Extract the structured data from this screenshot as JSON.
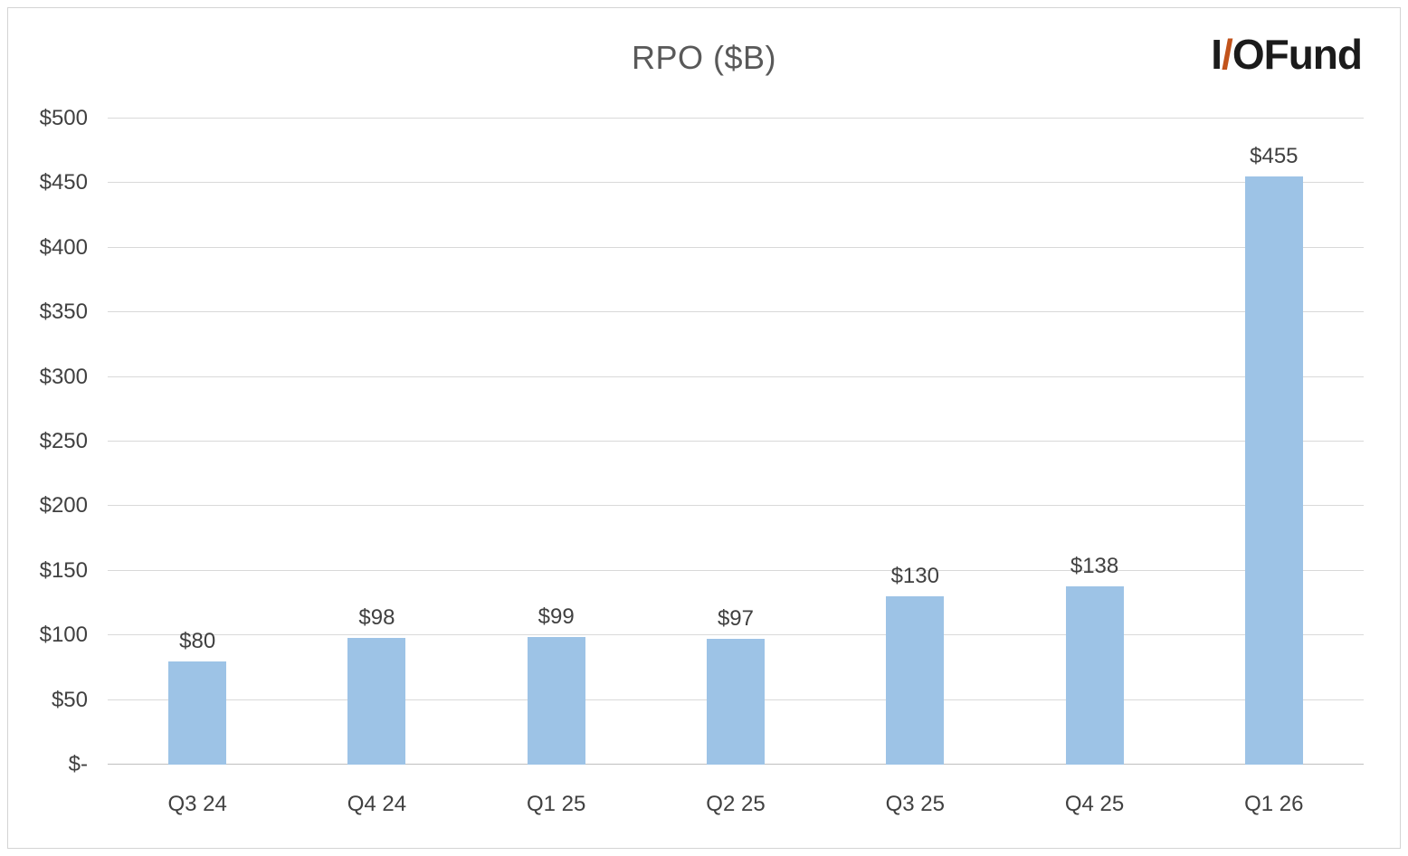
{
  "title": "RPO ($B)",
  "logo": {
    "part_i": "I",
    "part_slash": "/",
    "part_o": "O",
    "part_fund": "Fund",
    "slash_color": "#C2531B",
    "text_color": "#1b1b1b"
  },
  "chart_data": {
    "type": "bar",
    "title": "RPO ($B)",
    "categories": [
      "Q3 24",
      "Q4 24",
      "Q1 25",
      "Q2 25",
      "Q3 25",
      "Q4 25",
      "Q1 26"
    ],
    "values": [
      80,
      98,
      99,
      97,
      130,
      138,
      455
    ],
    "value_labels": [
      "$80",
      "$98",
      "$99",
      "$97",
      "$130",
      "$138",
      "$455"
    ],
    "xlabel": "",
    "ylabel": "",
    "ylim": [
      0,
      500
    ],
    "ytick_step": 50,
    "ytick_labels": [
      "$-",
      "$50",
      "$100",
      "$150",
      "$200",
      "$250",
      "$300",
      "$350",
      "$400",
      "$450",
      "$500"
    ],
    "grid": true,
    "legend": false,
    "bar_color": "#9DC3E6",
    "gridline_color": "#D9D9D9",
    "axis_label_color": "#404040",
    "title_color": "#595959"
  }
}
